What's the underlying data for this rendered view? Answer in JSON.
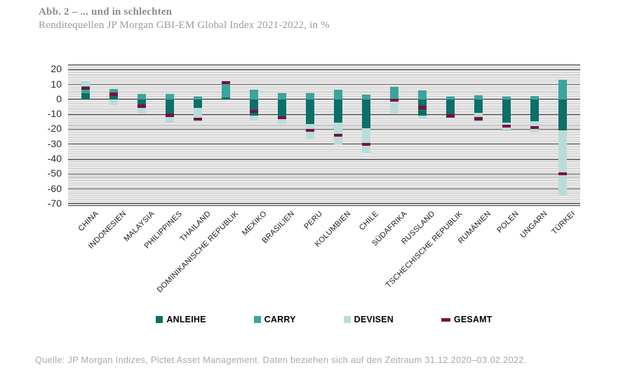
{
  "chart_data": {
    "type": "bar",
    "variant": "stacked-with-total-marker",
    "title": "Abb. 2 – ... und in schlechten",
    "subtitle": "Renditequellen JP Morgan GBI-EM Global Index 2021-2022, in %",
    "source": "Quelle: JP Morgan Indizes, Pictet Asset Management. Daten beziehen sich auf den Zeitraum 31.12.2020–03.02.2022.",
    "unit": "%",
    "categories": [
      "CHINA",
      "INDONESIEN",
      "MALAYSIA",
      "PHILIPPINES",
      "THAILAND",
      "DOMINIKANISCHE REPUBLIK",
      "MEXIKO",
      "BRASILIEN",
      "PERU",
      "KOLUMBIEN",
      "CHILE",
      "SÜDAFRIKA",
      "RUSSLAND",
      "TSCHECHISCHE REPUBLIK",
      "RUMÄNIEN",
      "POLEN",
      "UNGARN",
      "TÜRKEI"
    ],
    "series": [
      {
        "name": "ANLEIHE",
        "color": "#0c6f68",
        "values": [
          4.0,
          2.5,
          -3.7,
          -9.9,
          -5.9,
          1.3,
          -10.9,
          -11.3,
          -16.5,
          -15.6,
          -19.1,
          -1.0,
          -10.8,
          -10.3,
          -8.9,
          -15.5,
          -14.4,
          -20.8
        ]
      },
      {
        "name": "CARRY",
        "color": "#3aa49e",
        "values": [
          4.8,
          4.7,
          3.6,
          3.8,
          1.9,
          8.9,
          6.4,
          4.4,
          4.4,
          6.7,
          3.1,
          8.3,
          5.9,
          1.7,
          2.8,
          1.7,
          2.2,
          13.0
        ]
      },
      {
        "name": "DEVISEN",
        "color": "#b9dcdb",
        "values": [
          3.7,
          -3.4,
          -5.2,
          -5.4,
          -9.7,
          2.0,
          -3.2,
          -4.8,
          -10.0,
          -14.7,
          -17.1,
          -8.2,
          -2.6,
          -2.0,
          -6.6,
          -5.4,
          -7.8,
          -44.0
        ]
      }
    ],
    "marker_series": {
      "name": "GESAMT",
      "color": "#7c0f3d",
      "values": [
        7.5,
        3.6,
        -4.5,
        -10.5,
        -13.3,
        11.2,
        -8.0,
        -12.3,
        -20.6,
        -24.0,
        -30.0,
        -0.5,
        -5.5,
        -11.0,
        -12.9,
        -17.8,
        -18.8,
        -49.8
      ]
    },
    "ylim": [
      -71,
      23
    ],
    "yticks": [
      20,
      10,
      0,
      -10,
      -20,
      -30,
      -40,
      -50,
      -60,
      -70
    ],
    "grid": "dense fine horizontal lines, darker line at each labeled tick",
    "legend_position": "bottom",
    "colors": {
      "anleihe": "#0c6f68",
      "carry": "#3aa49e",
      "devisen": "#b9dcdb",
      "gesamt": "#7c0f3d",
      "grid_minor": "#b6b6b6",
      "grid_major": "#4d4d4d",
      "title_gray": "#8c8c8c",
      "source_gray": "#ababab"
    }
  }
}
